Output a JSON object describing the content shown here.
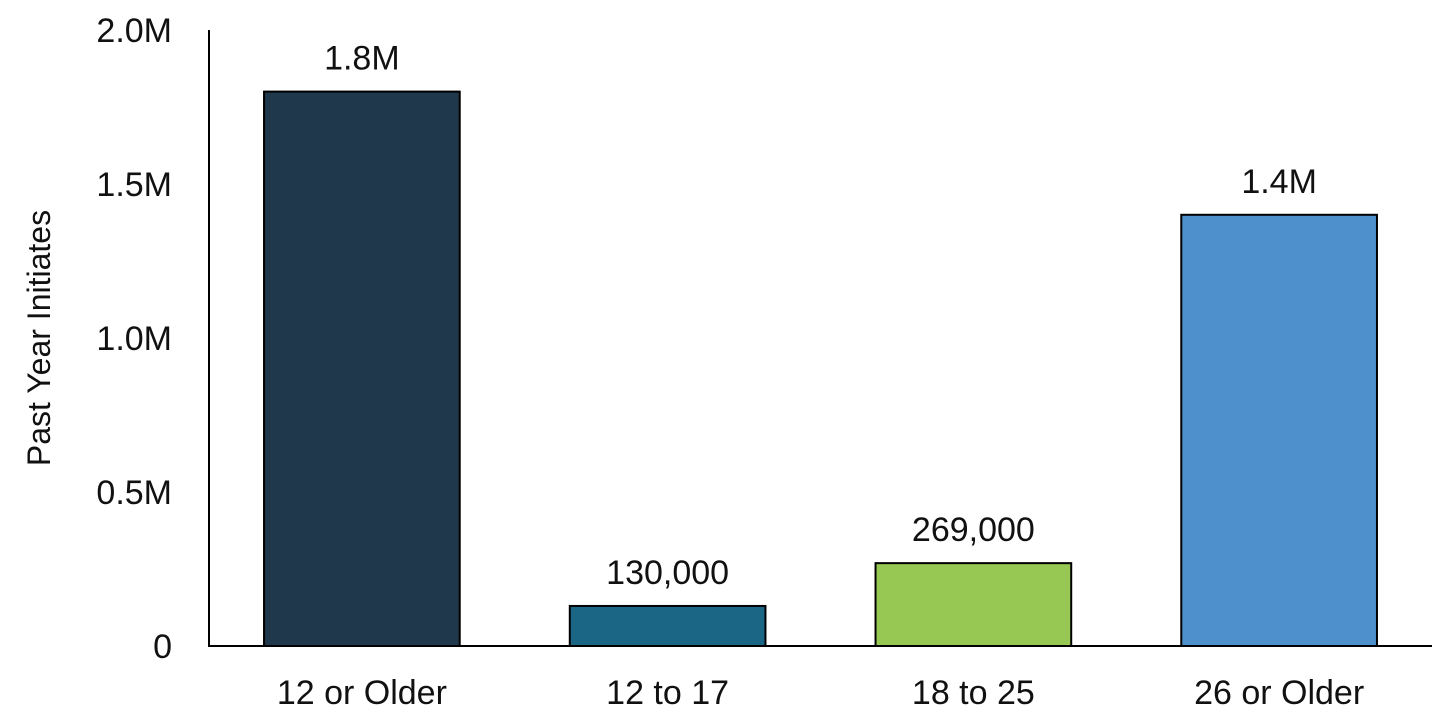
{
  "chart_data": {
    "type": "bar",
    "title": "",
    "xlabel": "",
    "ylabel": "Past Year Initiates",
    "ylim": [
      0,
      2000000
    ],
    "yticks": [
      {
        "value": 0,
        "label": "0"
      },
      {
        "value": 500000,
        "label": "0.5M"
      },
      {
        "value": 1000000,
        "label": "1.0M"
      },
      {
        "value": 1500000,
        "label": "1.5M"
      },
      {
        "value": 2000000,
        "label": "2.0M"
      }
    ],
    "grid": false,
    "categories": [
      "12 or Older",
      "12 to 17",
      "18 to 25",
      "26 or Older"
    ],
    "values": [
      1800000,
      130000,
      269000,
      1400000
    ],
    "data_labels": [
      "1.8M",
      "130,000",
      "269,000",
      "1.4M"
    ],
    "colors": [
      "#1f384c",
      "#1c6685",
      "#97c853",
      "#4e90cc"
    ]
  }
}
